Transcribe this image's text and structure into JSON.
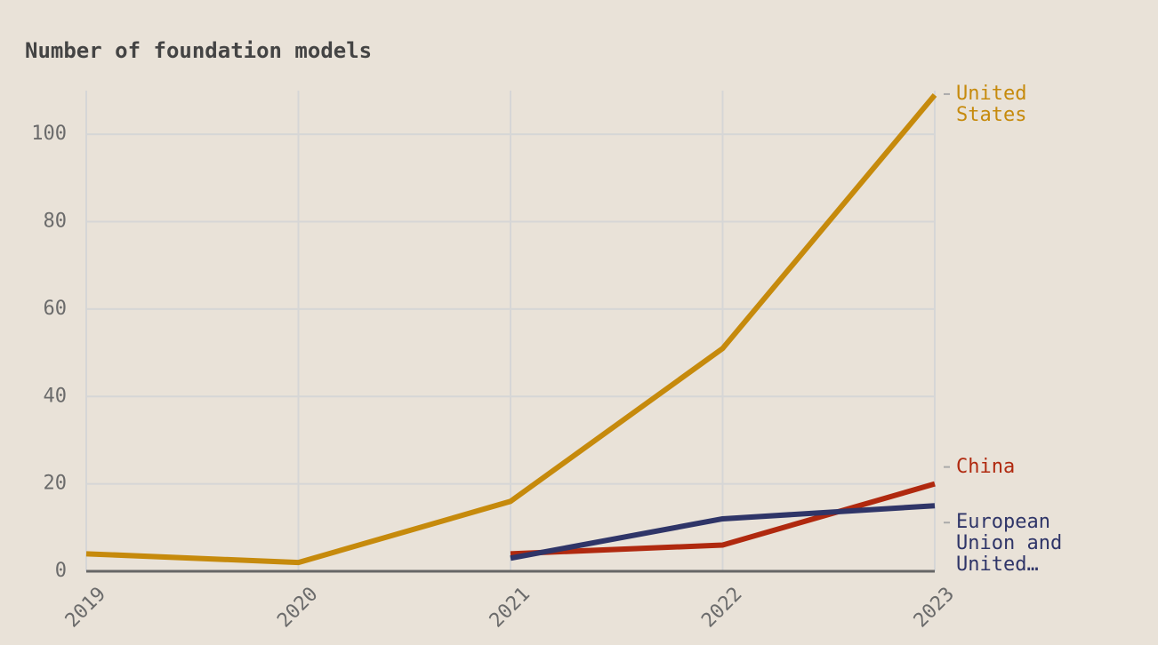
{
  "chart_data": {
    "type": "line",
    "title": "Number of foundation models",
    "x": [
      2019,
      2020,
      2021,
      2022,
      2023
    ],
    "xlim": [
      2019,
      2023
    ],
    "xticks": [
      2019,
      2020,
      2021,
      2022,
      2023
    ],
    "ylim": [
      0,
      110
    ],
    "yticks": [
      0,
      20,
      40,
      60,
      80,
      100
    ],
    "grid": true,
    "series": [
      {
        "name": "United States",
        "color": "#c68a0c",
        "values": [
          4,
          2,
          16,
          51,
          109
        ]
      },
      {
        "name": "China",
        "color": "#b0290f",
        "values": [
          null,
          null,
          4,
          6,
          20
        ]
      },
      {
        "name": "European Union and United…",
        "color": "#2f3568",
        "values": [
          null,
          null,
          3,
          12,
          15
        ]
      }
    ]
  }
}
